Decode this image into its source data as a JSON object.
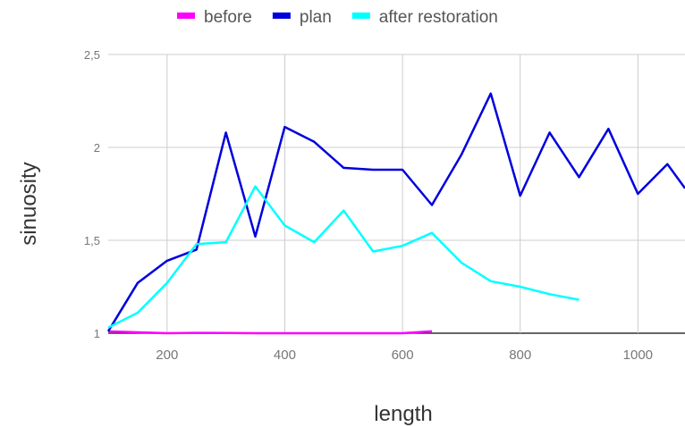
{
  "chart_data": {
    "type": "line",
    "xlabel": "length",
    "ylabel": "sinuosity",
    "xlim": [
      100,
      1080
    ],
    "ylim": [
      1,
      2.5
    ],
    "x_ticks": [
      200,
      400,
      600,
      800,
      1000
    ],
    "x_tick_labels": [
      "200",
      "400",
      "600",
      "800",
      "1000"
    ],
    "y_ticks": [
      1,
      1.5,
      2,
      2.5
    ],
    "y_tick_labels": [
      "1",
      "1,5",
      "2",
      "2,5"
    ],
    "grid": true,
    "legend_position": "top",
    "series": [
      {
        "name": "before",
        "color": "#ff00ff",
        "x": [
          100,
          150,
          200,
          250,
          300,
          350,
          400,
          450,
          500,
          550,
          600,
          650
        ],
        "y": [
          1.01,
          1.005,
          1.0,
          1.002,
          1.001,
          1.0,
          1.0,
          1.0,
          1.0,
          1.0,
          1.0,
          1.01
        ]
      },
      {
        "name": "plan",
        "color": "#0000dd",
        "x": [
          100,
          150,
          200,
          250,
          300,
          350,
          400,
          450,
          500,
          550,
          600,
          650,
          700,
          750,
          800,
          850,
          900,
          950,
          1000,
          1050,
          1080
        ],
        "y": [
          1.01,
          1.27,
          1.39,
          1.45,
          2.08,
          1.52,
          2.11,
          2.03,
          1.89,
          1.88,
          1.88,
          1.69,
          1.96,
          2.29,
          1.74,
          2.08,
          1.84,
          2.1,
          1.75,
          1.91,
          1.78
        ]
      },
      {
        "name": "after restoration",
        "color": "#00ffff",
        "x": [
          100,
          150,
          200,
          250,
          300,
          350,
          400,
          450,
          500,
          550,
          600,
          650,
          700,
          750,
          800,
          850,
          900
        ],
        "y": [
          1.03,
          1.11,
          1.27,
          1.48,
          1.49,
          1.79,
          1.58,
          1.49,
          1.66,
          1.44,
          1.47,
          1.54,
          1.38,
          1.28,
          1.25,
          1.21,
          1.18
        ]
      }
    ]
  }
}
